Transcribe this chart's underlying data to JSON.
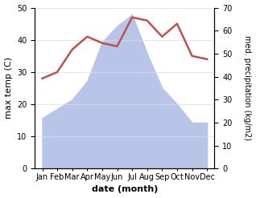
{
  "months": [
    "Jan",
    "Feb",
    "Mar",
    "Apr",
    "May",
    "Jun",
    "Jul",
    "Aug",
    "Sep",
    "Oct",
    "Nov",
    "Dec"
  ],
  "x": [
    1,
    2,
    3,
    4,
    5,
    6,
    7,
    8,
    9,
    10,
    11,
    12
  ],
  "precipitation": [
    22,
    26,
    30,
    38,
    55,
    62,
    67,
    50,
    35,
    28,
    20,
    20
  ],
  "temperature": [
    28,
    30,
    37,
    41,
    39,
    38,
    47,
    46,
    41,
    45,
    35,
    34
  ],
  "temp_color": "#c0504d",
  "precip_fill_color": "#b8c4e8",
  "left_ylim": [
    0,
    50
  ],
  "right_ylim": [
    0,
    70
  ],
  "left_yticks": [
    0,
    10,
    20,
    30,
    40,
    50
  ],
  "right_yticks": [
    0,
    10,
    20,
    30,
    40,
    50,
    60,
    70
  ],
  "xlabel": "date (month)",
  "ylabel_left": "max temp (C)",
  "ylabel_right": "med. precipitation (kg/m2)",
  "figsize": [
    3.18,
    2.47
  ],
  "dpi": 100
}
